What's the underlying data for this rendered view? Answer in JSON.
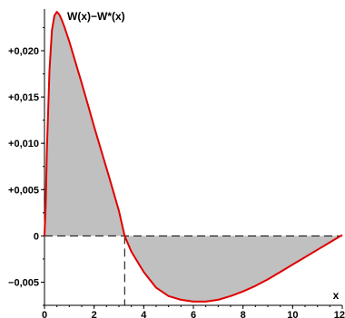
{
  "chart_data": {
    "type": "area",
    "title": "W(x)−W*(x)",
    "xlabel": "x",
    "ylabel": "",
    "xlim": [
      0,
      12
    ],
    "ylim": [
      -0.0075,
      0.0245
    ],
    "x_ticks": [
      0,
      2,
      4,
      6,
      8,
      10,
      12
    ],
    "x_tick_labels": [
      "0",
      "2",
      "4",
      "6",
      "8",
      "10",
      "12"
    ],
    "y_ticks": [
      -0.005,
      0,
      0.005,
      0.01,
      0.015,
      0.02
    ],
    "y_tick_labels": [
      "−0,005",
      "0",
      "+0,005",
      "+0,010",
      "+0,015",
      "+0,020"
    ],
    "grid": false,
    "zero_crossing": 3.23,
    "series": [
      {
        "color": "#e00000",
        "fill": "#c0c0c0",
        "x": [
          0,
          0.05,
          0.1,
          0.2,
          0.3,
          0.4,
          0.5,
          0.6,
          0.7,
          0.8,
          1.0,
          1.2,
          1.5,
          1.8,
          2.0,
          2.3,
          2.6,
          3.0,
          3.23,
          3.5,
          4.0,
          4.5,
          5.0,
          5.5,
          6.0,
          6.5,
          7.0,
          7.5,
          8.0,
          8.5,
          9.0,
          9.5,
          10.0,
          10.5,
          11.0,
          11.5,
          12.0
        ],
        "y": [
          0,
          0.0035,
          0.0095,
          0.0178,
          0.0222,
          0.0238,
          0.0242,
          0.0239,
          0.0233,
          0.0226,
          0.021,
          0.0192,
          0.0165,
          0.0137,
          0.0118,
          0.0091,
          0.0064,
          0.0027,
          0,
          -0.0017,
          -0.0039,
          -0.0056,
          -0.0065,
          -0.0069,
          -0.0071,
          -0.0071,
          -0.0069,
          -0.0065,
          -0.006,
          -0.0054,
          -0.0047,
          -0.0039,
          -0.0031,
          -0.0023,
          -0.0015,
          -0.0007,
          0.0001
        ]
      }
    ]
  }
}
